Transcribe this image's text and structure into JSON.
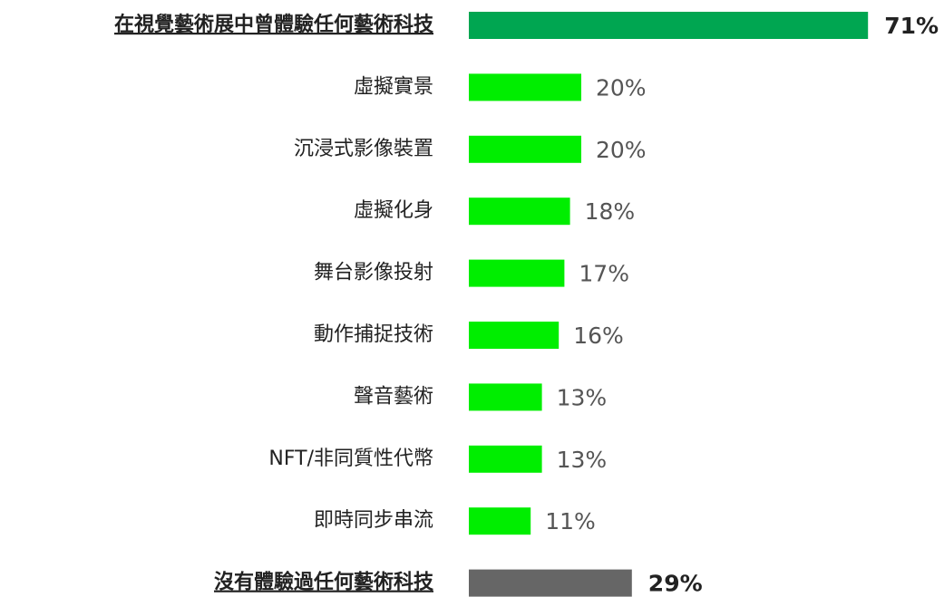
{
  "chart_data": {
    "type": "bar",
    "orientation": "horizontal",
    "categories": [
      "在視覺藝術展中曾體驗任何藝術科技",
      "虛擬實景",
      "沉浸式影像裝置",
      "虛擬化身",
      "舞台影像投射",
      "動作捕捉技術",
      "聲音藝術",
      "NFT/非同質性代幣",
      "即時同步串流",
      "沒有體驗過任何藝術科技"
    ],
    "values": [
      71,
      20,
      20,
      18,
      17,
      16,
      13,
      13,
      11,
      29
    ],
    "value_labels": [
      "71%",
      "20%",
      "20%",
      "18%",
      "17%",
      "16%",
      "13%",
      "13%",
      "11%",
      "29%"
    ],
    "colors": [
      "#00a651",
      "#00ee00",
      "#00ee00",
      "#00ee00",
      "#00ee00",
      "#00ee00",
      "#00ee00",
      "#00ee00",
      "#00ee00",
      "#666666"
    ]
  }
}
